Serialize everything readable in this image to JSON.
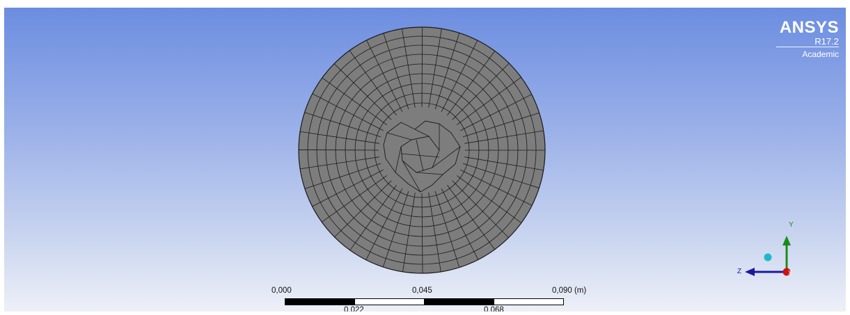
{
  "branding": {
    "product": "ANSYS",
    "version": "R17.2",
    "license": "Academic"
  },
  "scale_bar": {
    "top_labels": [
      "0,000",
      "0,045",
      "0,090 (m)"
    ],
    "bottom_labels": [
      "0,022",
      "0,068"
    ]
  },
  "triad": {
    "y_label": "Y",
    "z_label": "Z",
    "x_label": "X",
    "colors": {
      "y": "#1a8c1a",
      "z": "#1a1aa0",
      "x": "#cc1111",
      "iso_ball": "#1fb8c8"
    }
  },
  "mesh": {
    "fill_color": "#7d7d7d",
    "edge_color": "#1a1a1a"
  }
}
